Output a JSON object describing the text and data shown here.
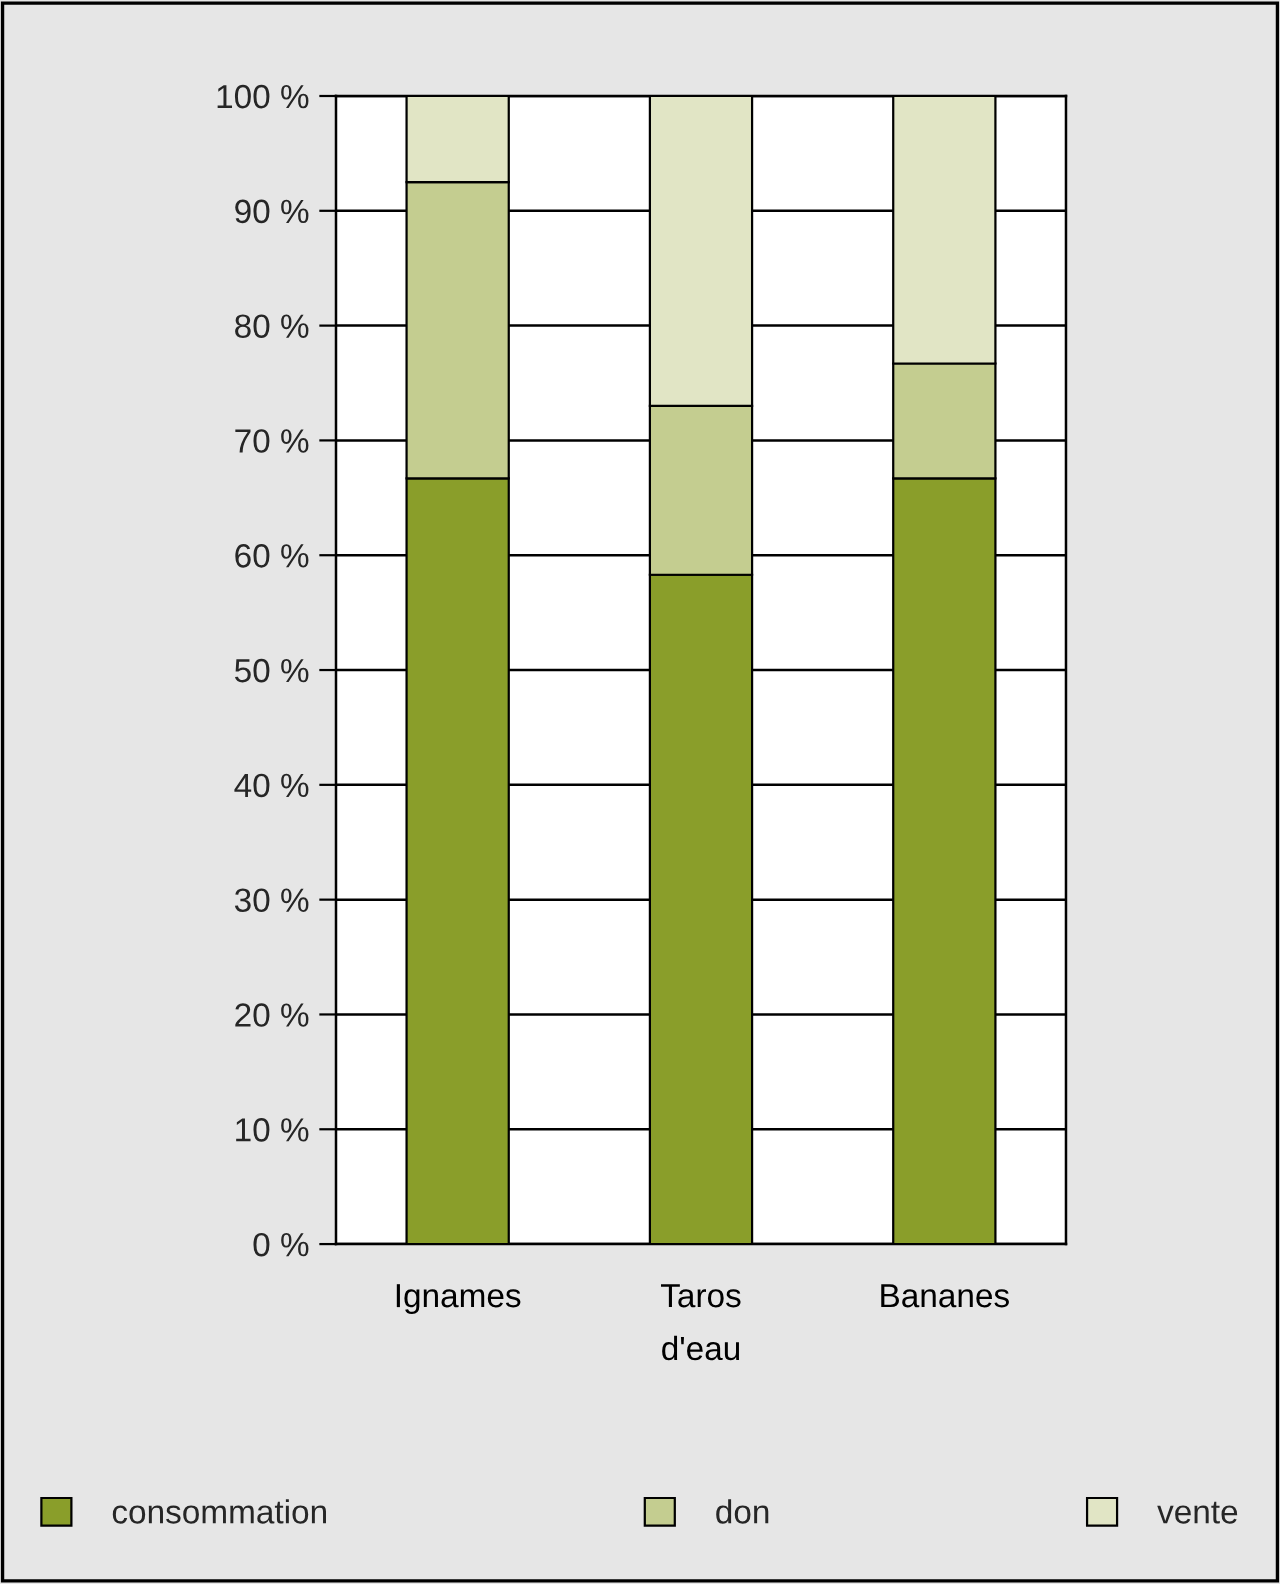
{
  "chart_data": {
    "type": "bar",
    "stacked": true,
    "categories": [
      "Ignames",
      "Taros\nd'eau",
      "Bananes"
    ],
    "series": [
      {
        "name": "consommation",
        "color": "#8a9e2a",
        "values": [
          66.7,
          58.3,
          66.7
        ]
      },
      {
        "name": "don",
        "color": "#c4cd90",
        "values": [
          25.8,
          14.7,
          10.0
        ]
      },
      {
        "name": "vente",
        "color": "#e1e5c5",
        "values": [
          7.5,
          27.0,
          23.3
        ]
      }
    ],
    "ylim": [
      0,
      100
    ],
    "yticks": [
      {
        "value": 0,
        "label": "0 %"
      },
      {
        "value": 10,
        "label": "10 %"
      },
      {
        "value": 20,
        "label": "20 %"
      },
      {
        "value": 30,
        "label": "30 %"
      },
      {
        "value": 40,
        "label": "40 %"
      },
      {
        "value": 50,
        "label": "50 %"
      },
      {
        "value": 60,
        "label": "60 %"
      },
      {
        "value": 70,
        "label": "70 %"
      },
      {
        "value": 80,
        "label": "80 %"
      },
      {
        "value": 90,
        "label": "90 %"
      },
      {
        "value": 100,
        "label": "100 %"
      }
    ],
    "grid": "y",
    "legend": "bottom"
  }
}
